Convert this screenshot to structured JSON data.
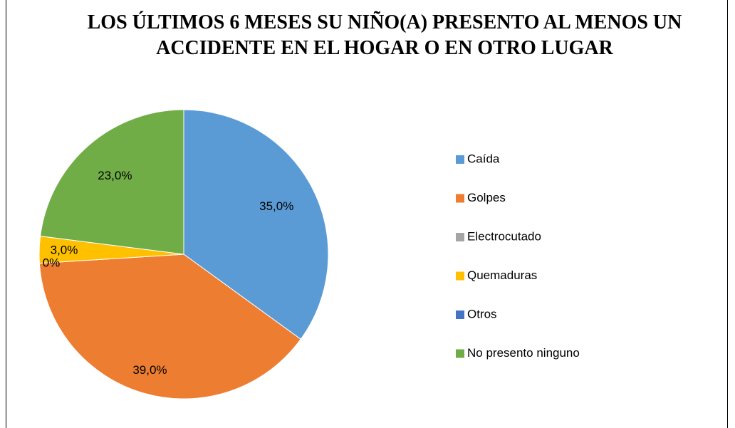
{
  "chart_data": {
    "type": "pie",
    "title": "LOS ÚLTIMOS 6 MESES SU NIÑO(A) PRESENTO AL MENOS UN ACCIDENTE EN EL HOGAR O EN OTRO LUGAR",
    "categories": [
      "Caída",
      "Golpes",
      "Electrocutado",
      "Quemaduras",
      "Otros",
      "No presento ninguno"
    ],
    "values": [
      35,
      39,
      0,
      3,
      0,
      23
    ],
    "value_labels": [
      "35,0%",
      "39,0%",
      "0%",
      "3,0%",
      "0%",
      "23,0%"
    ],
    "colors": [
      "#5b9bd5",
      "#ed7d31",
      "#a5a5a5",
      "#ffc000",
      "#4472c4",
      "#70ad47"
    ],
    "legend": "right"
  }
}
